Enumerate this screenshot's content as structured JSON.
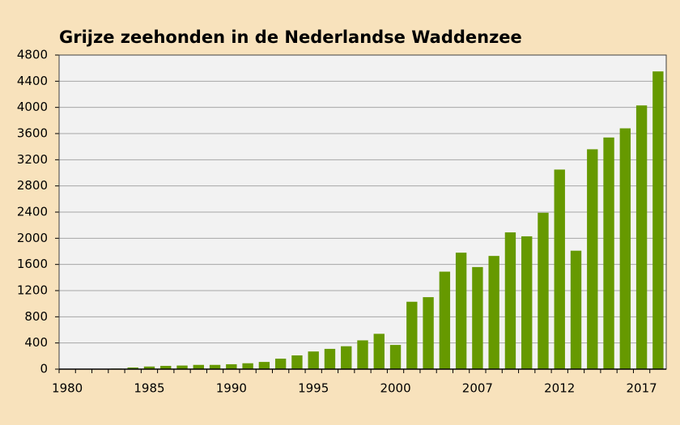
{
  "chart_data": {
    "type": "bar",
    "title": "Grijze zeehonden in de Nederlandse Waddenzee",
    "categories": [
      "1980",
      null,
      null,
      null,
      null,
      "1985",
      null,
      null,
      null,
      null,
      "1990",
      null,
      null,
      null,
      null,
      "1995",
      null,
      null,
      null,
      null,
      "2000",
      null,
      null,
      null,
      null,
      "2007",
      null,
      null,
      null,
      null,
      "2012",
      null,
      null,
      null,
      null,
      "2017",
      null
    ],
    "values": [
      2,
      3,
      5,
      8,
      25,
      40,
      50,
      55,
      65,
      65,
      75,
      90,
      110,
      160,
      210,
      270,
      310,
      350,
      440,
      540,
      370,
      1030,
      1100,
      1490,
      1780,
      1560,
      1730,
      2090,
      2030,
      2390,
      3050,
      1810,
      3360,
      3540,
      3680,
      4030,
      4550
    ],
    "color": "#669900",
    "ylim": [
      0,
      4800
    ],
    "yticks": [
      0,
      400,
      800,
      1200,
      1600,
      2000,
      2400,
      2800,
      3200,
      3600,
      4000,
      4400,
      4800
    ],
    "grid": true
  }
}
